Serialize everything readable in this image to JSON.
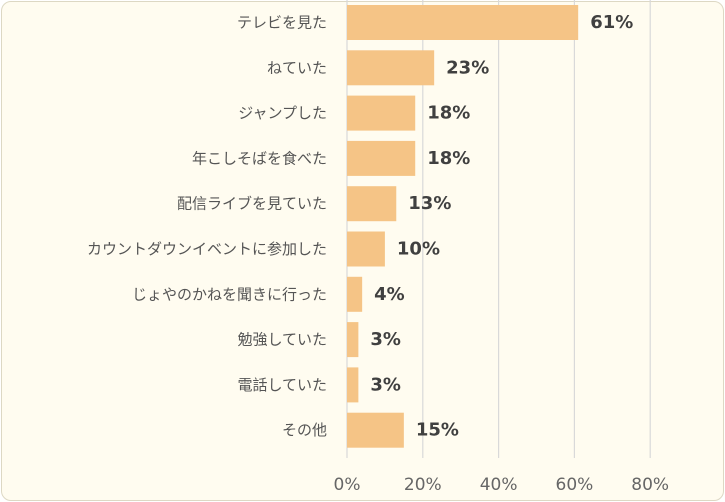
{
  "chart_data": {
    "type": "bar",
    "orientation": "horizontal",
    "categories": [
      "テレビを見た",
      "ねていた",
      "ジャンプした",
      "年こしそばを食べた",
      "配信ライブを見ていた",
      "カウントダウンイベントに参加した",
      "じょやのかねを聞きに行った",
      "勉強していた",
      "電話していた",
      "その他"
    ],
    "values": [
      61,
      23,
      18,
      18,
      13,
      10,
      4,
      3,
      3,
      15
    ],
    "value_labels": [
      "61%",
      "23%",
      "18%",
      "18%",
      "13%",
      "10%",
      "4%",
      "3%",
      "3%",
      "15%"
    ],
    "x_ticks": [
      0,
      20,
      40,
      60,
      80
    ],
    "x_tick_labels": [
      "0%",
      "20%",
      "40%",
      "60%",
      "80%"
    ],
    "xlim": [
      0,
      80
    ],
    "grid": true,
    "legend": "none",
    "bar_color": "#f5c486",
    "grid_color": "#d9d9d9",
    "background_color": "#fffcf0"
  }
}
